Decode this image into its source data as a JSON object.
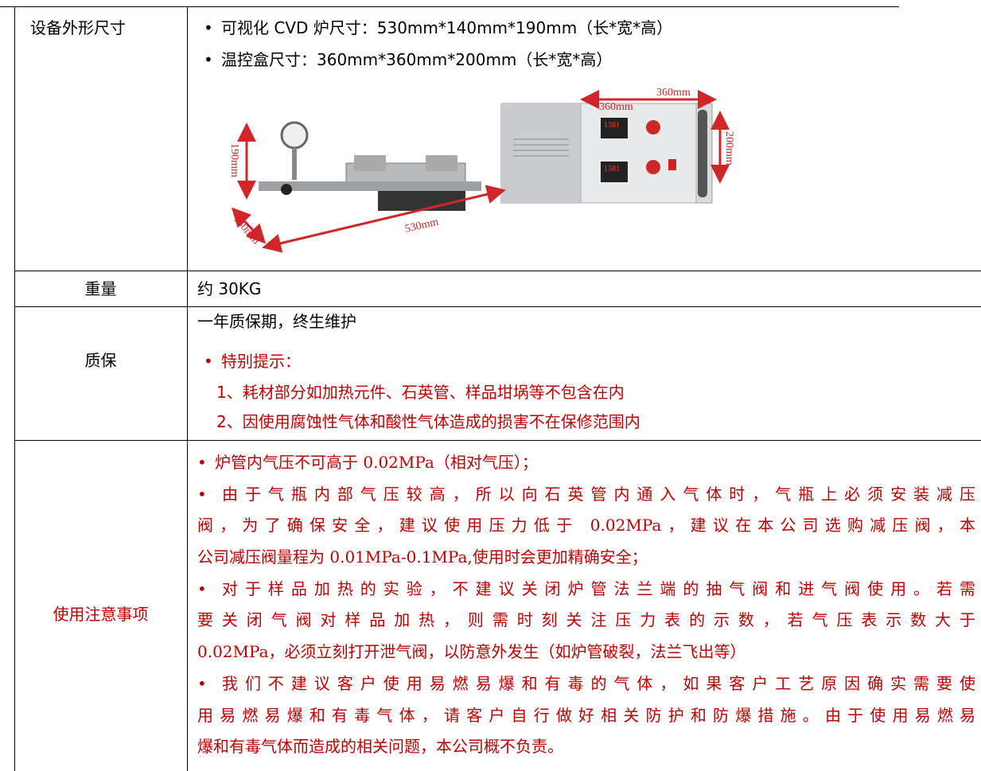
{
  "table": {
    "rows": [
      {
        "label": "设备外形尺寸",
        "items": [
          "可视化 CVD 炉尺寸：530mm*140mm*190mm（长*宽*高）",
          "温控盒尺寸：360mm*360mm*200mm（长*宽*高）"
        ],
        "image_labels": [
          "360mm",
          "360mm",
          "200mm",
          "190mm",
          "140mm",
          "530mm"
        ]
      },
      {
        "label": "重量",
        "text": "约 30KG"
      },
      {
        "label": "质保",
        "text": "一年质保期，终生维护",
        "note_title": "特别提示：",
        "notes": [
          "1、耗材部分如加热元件、石英管、样品坩埚等不包含在内",
          "2、因使用腐蚀性气体和酸性气体造成的损害不在保修范围内"
        ]
      },
      {
        "label": "使用注意事项",
        "items": [
          [
            "炉管内气压不可高于 0.02MPa（相对气压）；"
          ],
          [
            "由于气瓶内部气压较高，所以向石英管内通入气体时，气瓶上必须安装减压",
            "阀，为了确保安全，建议使用压力低于 0.02MPa，建议在本公司选购减压阀，本",
            "公司减压阀量程为 0.01MPa-0.1MPa,使用时会更加精确安全；"
          ],
          [
            "对于样品加热的实验，不建议关闭炉管法兰端的抽气阀和进气阀使用。若需",
            "要关闭气阀对样品加热，则需时刻关注压力表的示数，若气压表示数大于",
            "0.02MPa，必须立刻打开泄气阀，以防意外发生（如炉管破裂，法兰飞出等）"
          ],
          [
            "我们不建议客户使用易燃易爆和有毒的气体，如果客户工艺原因确实需要使",
            "用易燃易爆和有毒气体，请客户自行做好相关防护和防爆措施。由于使用易燃易",
            "爆和有毒气体而造成的相关问题，本公司概不负责。"
          ]
        ]
      }
    ]
  }
}
